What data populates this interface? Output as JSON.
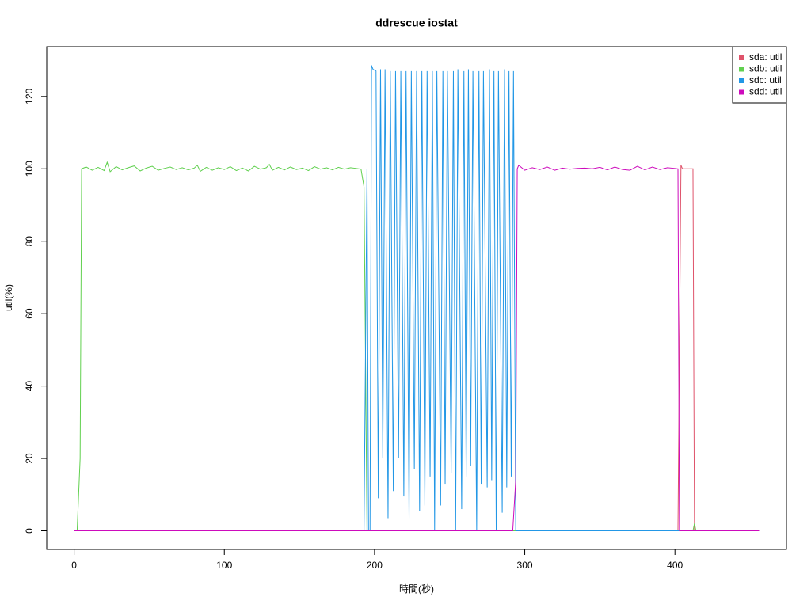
{
  "chart_data": {
    "type": "line",
    "title": "ddrescue iostat",
    "x_label": "時間(秒)",
    "y_label": "util(%)",
    "xlim": [
      -18.24,
      474.24
    ],
    "ylim": [
      -5.14,
      133.74
    ],
    "xticks": [
      0,
      100,
      200,
      300,
      400
    ],
    "yticks": [
      0,
      20,
      40,
      60,
      80,
      100,
      120
    ],
    "legend": "topright",
    "series": [
      {
        "name": "sda: util",
        "color": "#DF536B",
        "x": [
          0,
          402,
          404,
          405,
          412,
          413,
          456
        ],
        "values": [
          0,
          0,
          101,
          100,
          100,
          0,
          0
        ]
      },
      {
        "name": "sdb: util",
        "color": "#61D04F",
        "x": [
          0,
          2,
          4,
          5,
          8,
          12,
          16,
          20,
          22,
          24,
          28,
          32,
          36,
          40,
          44,
          48,
          52,
          56,
          60,
          64,
          68,
          72,
          76,
          80,
          82,
          84,
          88,
          92,
          96,
          100,
          104,
          108,
          112,
          116,
          120,
          124,
          128,
          130,
          132,
          136,
          140,
          144,
          148,
          152,
          156,
          160,
          164,
          168,
          172,
          176,
          180,
          184,
          188,
          191,
          193,
          195,
          412,
          413,
          414,
          456
        ],
        "values": [
          0,
          0,
          20,
          100,
          100.5,
          99.6,
          100.4,
          99.5,
          101.8,
          99.2,
          100.6,
          99.7,
          100.3,
          100.8,
          99.4,
          100.2,
          100.7,
          99.6,
          100.1,
          100.5,
          99.8,
          100.3,
          99.7,
          100.2,
          101,
          99.3,
          100.4,
          99.6,
          100.3,
          99.8,
          100.6,
          99.5,
          100.2,
          99.4,
          100.7,
          99.9,
          100.3,
          101.2,
          99.6,
          100.4,
          99.7,
          100.5,
          99.8,
          100.2,
          99.5,
          100.6,
          99.9,
          100.3,
          99.7,
          100.4,
          99.9,
          100.3,
          100.1,
          99.9,
          95,
          0,
          0,
          2,
          0,
          0
        ]
      },
      {
        "name": "sdc: util",
        "color": "#2297E6",
        "x": [
          0,
          193,
          195,
          196,
          197,
          198,
          199,
          201,
          202.5,
          204,
          205.5,
          207,
          209,
          210.5,
          212.5,
          214,
          216,
          217.5,
          219.5,
          221,
          223,
          224.5,
          226.5,
          228,
          230,
          231.5,
          233.5,
          235,
          237,
          238.5,
          240,
          241.5,
          244,
          245.5,
          247,
          248.5,
          251,
          252.5,
          254,
          255.5,
          258,
          259.5,
          261,
          262.5,
          264,
          265.5,
          268,
          269.5,
          271,
          272.5,
          275,
          276.5,
          278,
          279.5,
          281,
          282.5,
          285,
          286.5,
          288,
          289.5,
          291,
          292.5,
          294,
          456
        ],
        "values": [
          0,
          0,
          100,
          0,
          0,
          128.6,
          127.5,
          127,
          9,
          127.5,
          20,
          127.5,
          3.5,
          127,
          11,
          127,
          20,
          127,
          9.5,
          127,
          3.5,
          127,
          17,
          127,
          5.5,
          127,
          7,
          127,
          15,
          127,
          0,
          127,
          7,
          127,
          13,
          127,
          16,
          127,
          0,
          127.5,
          6,
          127,
          15,
          127.5,
          18,
          127,
          0,
          127,
          13,
          127,
          12,
          127.5,
          14,
          127,
          0,
          127,
          5,
          127.5,
          12,
          127,
          15,
          127,
          0,
          0
        ]
      },
      {
        "name": "sdd: util",
        "color": "#CD0BBC",
        "x": [
          0,
          292,
          294,
          295,
          296,
          300,
          305,
          310,
          315,
          320,
          325,
          330,
          335,
          340,
          345,
          350,
          355,
          360,
          365,
          370,
          375,
          380,
          385,
          390,
          395,
          400,
          402,
          403,
          456
        ],
        "values": [
          0,
          0,
          14,
          100,
          101,
          99.6,
          100.3,
          99.8,
          100.5,
          99.6,
          100.2,
          99.9,
          100.1,
          100.2,
          100,
          100.4,
          99.7,
          100.5,
          99.8,
          99.6,
          100.7,
          99.7,
          100.5,
          99.8,
          100.3,
          100.1,
          100,
          0,
          0
        ]
      }
    ]
  }
}
